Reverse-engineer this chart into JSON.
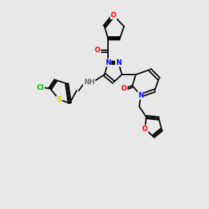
{
  "bg_color": "#e8e8e8",
  "bond_color": "#000000",
  "atom_colors": {
    "O": "#ff0000",
    "N": "#0000ff",
    "S": "#cccc00",
    "Cl": "#00bb00",
    "H": "#707070",
    "C": "#000000"
  },
  "figsize": [
    3.0,
    3.0
  ],
  "dpi": 100
}
